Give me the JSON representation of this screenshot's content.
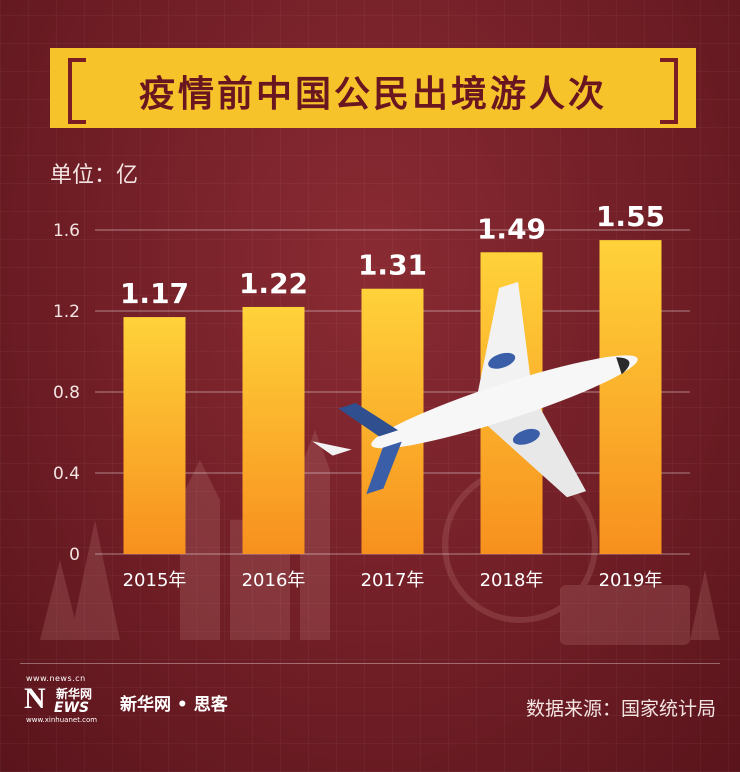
{
  "title": "疫情前中国公民出境游人次",
  "unit_label": "单位：亿",
  "brand": "新华网 • 思客",
  "source": "数据来源：国家统计局",
  "logo": {
    "top_text": "www.news.cn",
    "letter": "N",
    "cn_text": "新华网",
    "ews_text": "EWS",
    "bottom_text": "www.xinhuanet.com"
  },
  "colors": {
    "background": "#6e1d25",
    "title_band": "#f6c42a",
    "bar_top": "#ffd23a",
    "bar_bottom": "#f7901e"
  },
  "chart_data": {
    "type": "bar",
    "title": "疫情前中国公民出境游人次",
    "ylabel": "单位：亿",
    "categories": [
      "2015年",
      "2016年",
      "2017年",
      "2018年",
      "2019年"
    ],
    "values": [
      1.17,
      1.22,
      1.31,
      1.49,
      1.55
    ],
    "data_labels": [
      "1.17",
      "1.22",
      "1.31",
      "1.49",
      "1.55"
    ],
    "yticks": [
      "0",
      "0.4",
      "0.8",
      "1.2",
      "1.6"
    ],
    "ylim": [
      0,
      1.6
    ],
    "grid": true
  }
}
